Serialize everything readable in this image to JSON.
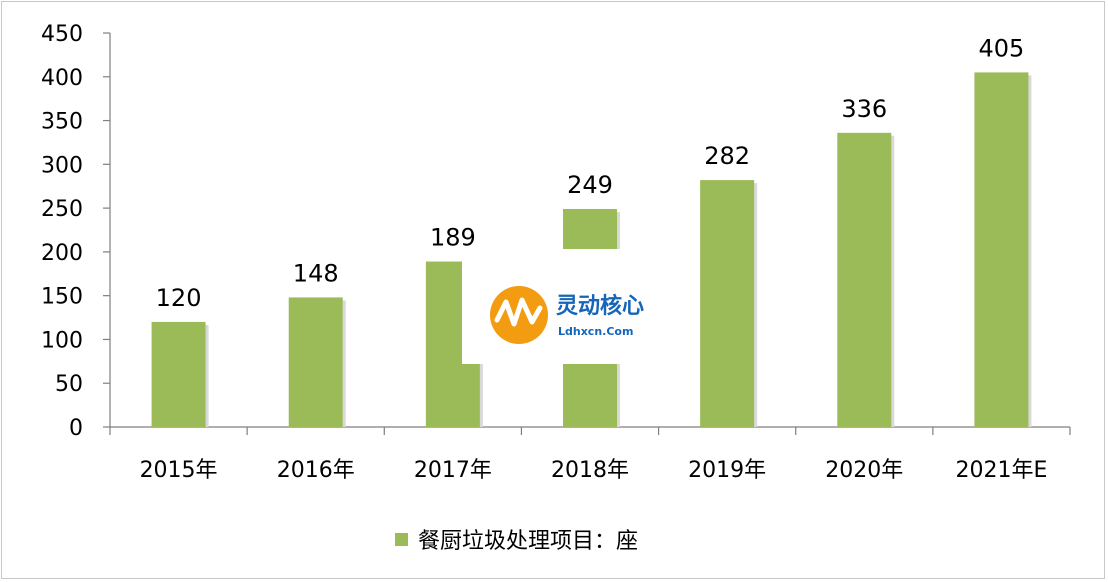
{
  "chart_data": {
    "type": "bar",
    "categories": [
      "2015年",
      "2016年",
      "2017年",
      "2018年",
      "2019年",
      "2020年",
      "2021年E"
    ],
    "series": [
      {
        "name": "餐厨垃圾处理项目：座",
        "values": [
          120,
          148,
          189,
          249,
          282,
          336,
          405
        ]
      }
    ],
    "ylim": [
      0,
      450
    ],
    "yticks": [
      0,
      50,
      100,
      150,
      200,
      250,
      300,
      350,
      400,
      450
    ],
    "legend_position": "bottom",
    "grid": false,
    "colors": {
      "bar": "#9bbb59",
      "axis": "#7f7f7f"
    }
  },
  "watermark": {
    "name": "灵动核心",
    "url": "Ldhxcn.Com"
  }
}
